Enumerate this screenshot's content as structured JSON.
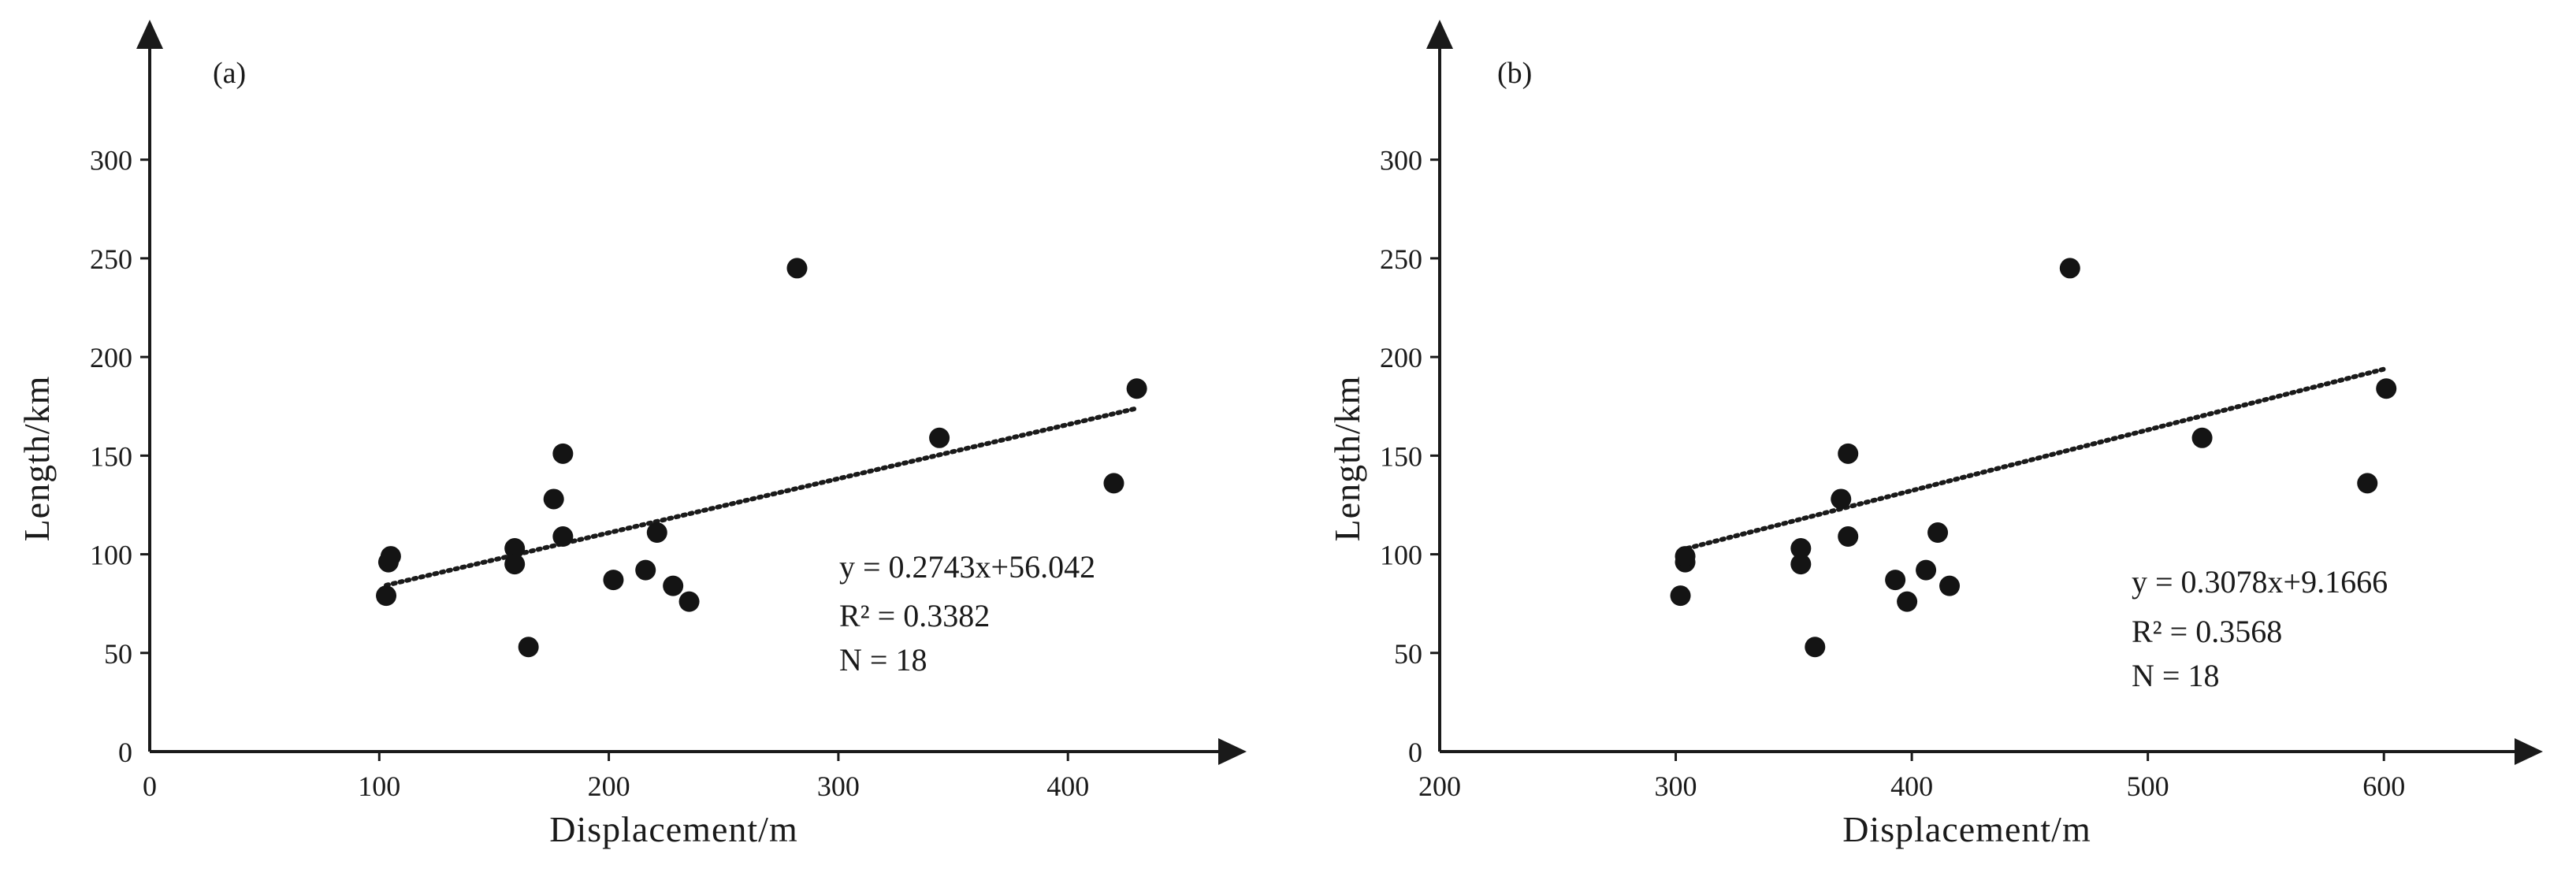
{
  "chart_data": [
    {
      "type": "scatter",
      "panel_label": "(a)",
      "xlabel": "Displacement/m",
      "ylabel": "Length/km",
      "xlim": [
        0,
        460
      ],
      "ylim": [
        0,
        345
      ],
      "xticks": [
        0,
        100,
        200,
        300,
        400
      ],
      "yticks": [
        0,
        50,
        100,
        150,
        200,
        250,
        300
      ],
      "points": [
        {
          "x": 103,
          "y": 79
        },
        {
          "x": 104,
          "y": 96
        },
        {
          "x": 105,
          "y": 99
        },
        {
          "x": 159,
          "y": 103
        },
        {
          "x": 159,
          "y": 95
        },
        {
          "x": 165,
          "y": 53
        },
        {
          "x": 176,
          "y": 128
        },
        {
          "x": 180,
          "y": 151
        },
        {
          "x": 180,
          "y": 109
        },
        {
          "x": 202,
          "y": 87
        },
        {
          "x": 216,
          "y": 92
        },
        {
          "x": 221,
          "y": 111
        },
        {
          "x": 228,
          "y": 84
        },
        {
          "x": 235,
          "y": 76
        },
        {
          "x": 282,
          "y": 245
        },
        {
          "x": 344,
          "y": 159
        },
        {
          "x": 420,
          "y": 136
        },
        {
          "x": 430,
          "y": 184
        }
      ],
      "trendline": {
        "slope": 0.2743,
        "intercept": 56.042,
        "x_start": 103,
        "x_end": 430
      },
      "annotations": [
        "y = 0.2743x+56.042",
        "R² = 0.3382",
        "N = 18"
      ]
    },
    {
      "type": "scatter",
      "panel_label": "(b)",
      "xlabel": "Displacement/m",
      "ylabel": "Length/km",
      "xlim": [
        200,
        650
      ],
      "ylim": [
        0,
        345
      ],
      "xticks": [
        200,
        300,
        400,
        500,
        600
      ],
      "yticks": [
        0,
        50,
        100,
        150,
        200,
        250,
        300
      ],
      "points": [
        {
          "x": 302,
          "y": 79
        },
        {
          "x": 304,
          "y": 96
        },
        {
          "x": 304,
          "y": 99
        },
        {
          "x": 353,
          "y": 103
        },
        {
          "x": 353,
          "y": 95
        },
        {
          "x": 359,
          "y": 53
        },
        {
          "x": 370,
          "y": 128
        },
        {
          "x": 373,
          "y": 151
        },
        {
          "x": 373,
          "y": 109
        },
        {
          "x": 393,
          "y": 87
        },
        {
          "x": 398,
          "y": 76
        },
        {
          "x": 406,
          "y": 92
        },
        {
          "x": 411,
          "y": 111
        },
        {
          "x": 416,
          "y": 84
        },
        {
          "x": 467,
          "y": 245
        },
        {
          "x": 523,
          "y": 159
        },
        {
          "x": 593,
          "y": 136
        },
        {
          "x": 601,
          "y": 184
        }
      ],
      "trendline": {
        "slope": 0.3078,
        "intercept": 9.1666,
        "x_start": 302,
        "x_end": 601
      },
      "annotations": [
        "y = 0.3078x+9.1666",
        "R² = 0.3568",
        "N = 18"
      ]
    }
  ]
}
